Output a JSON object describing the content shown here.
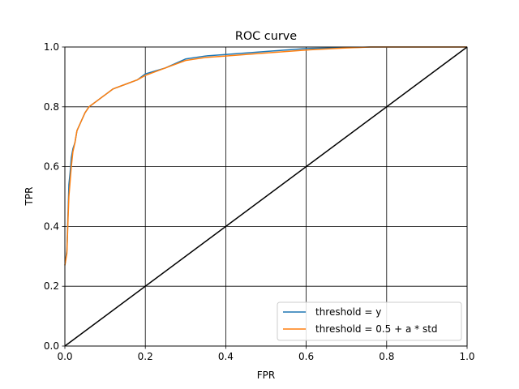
{
  "chart_data": {
    "type": "line",
    "title": "ROC curve",
    "xlabel": "FPR",
    "ylabel": "TPR",
    "xlim": [
      0.0,
      1.0
    ],
    "ylim": [
      0.0,
      1.0
    ],
    "grid": true,
    "legend_position": "lower-right",
    "x_ticks": [
      "0.0",
      "0.2",
      "0.4",
      "0.6",
      "0.8",
      "1.0"
    ],
    "y_ticks": [
      "0.0",
      "0.2",
      "0.4",
      "0.6",
      "0.8",
      "1.0"
    ],
    "series": [
      {
        "name": "threshold = y",
        "color": "#1f77b4",
        "x": [
          0.0,
          0.005,
          0.008,
          0.01,
          0.013,
          0.016,
          0.02,
          0.025,
          0.03,
          0.04,
          0.05,
          0.06,
          0.07,
          0.08,
          0.1,
          0.12,
          0.15,
          0.18,
          0.2,
          0.25,
          0.3,
          0.35,
          0.4,
          0.5,
          0.6,
          0.7,
          0.76,
          1.0
        ],
        "y": [
          0.27,
          0.32,
          0.45,
          0.54,
          0.58,
          0.63,
          0.66,
          0.68,
          0.72,
          0.75,
          0.78,
          0.8,
          0.81,
          0.82,
          0.84,
          0.86,
          0.875,
          0.89,
          0.91,
          0.93,
          0.96,
          0.97,
          0.975,
          0.985,
          0.995,
          0.998,
          1.0,
          1.0
        ]
      },
      {
        "name": "threshold = 0.5 + a * std",
        "color": "#ff7f0e",
        "x": [
          0.0,
          0.005,
          0.008,
          0.01,
          0.013,
          0.016,
          0.02,
          0.025,
          0.03,
          0.04,
          0.05,
          0.06,
          0.07,
          0.08,
          0.1,
          0.12,
          0.15,
          0.18,
          0.2,
          0.25,
          0.3,
          0.35,
          0.4,
          0.5,
          0.6,
          0.7,
          0.76,
          1.0
        ],
        "y": [
          0.27,
          0.31,
          0.43,
          0.5,
          0.55,
          0.6,
          0.65,
          0.68,
          0.72,
          0.75,
          0.78,
          0.8,
          0.81,
          0.82,
          0.84,
          0.86,
          0.875,
          0.89,
          0.905,
          0.93,
          0.955,
          0.965,
          0.97,
          0.98,
          0.99,
          0.997,
          1.0,
          1.0
        ]
      },
      {
        "name": "",
        "color": "#000000",
        "x": [
          0.0,
          1.0
        ],
        "y": [
          0.0,
          1.0
        ]
      }
    ]
  }
}
